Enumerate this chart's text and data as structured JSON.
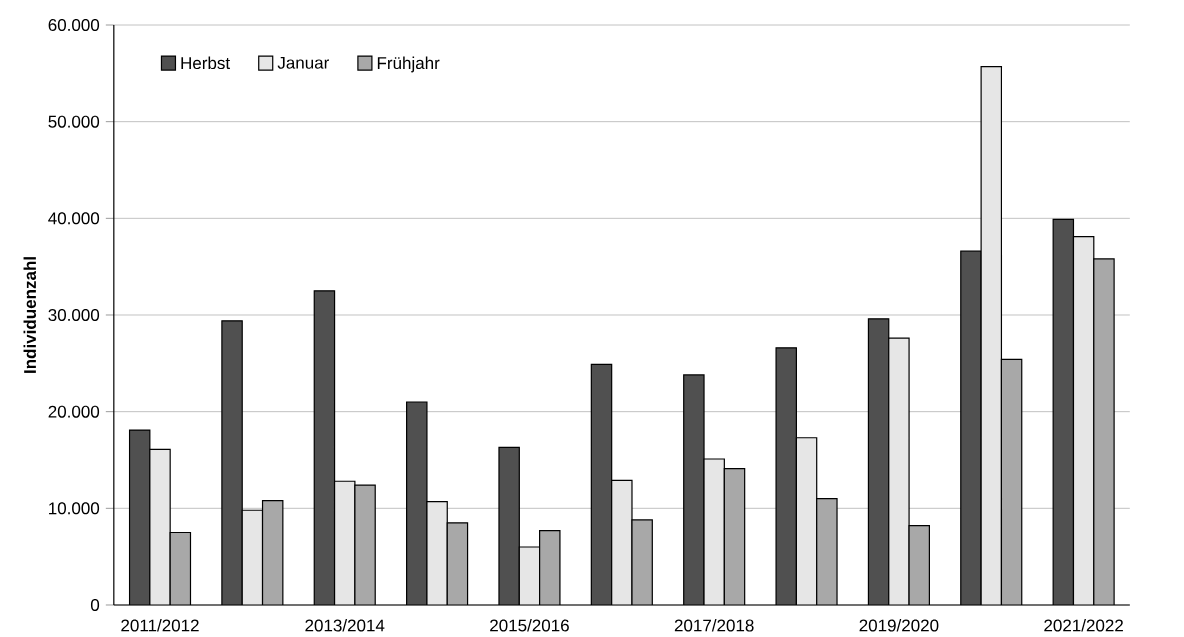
{
  "chart_data": {
    "type": "bar",
    "ylabel": "Individuenzahl",
    "categories": [
      "2011/2012",
      null,
      "2013/2014",
      null,
      "2015/2016",
      null,
      "2017/2018",
      null,
      "2019/2020",
      null,
      "2021/2022"
    ],
    "series": [
      {
        "name": "Herbst",
        "color": "#505050",
        "values": [
          18100,
          29400,
          32500,
          21000,
          16300,
          24900,
          23800,
          26600,
          29600,
          36600,
          39900
        ]
      },
      {
        "name": "Januar",
        "color": "#e6e6e6",
        "values": [
          16100,
          9800,
          12800,
          10700,
          6000,
          12900,
          15100,
          17300,
          27600,
          55700,
          38100
        ]
      },
      {
        "name": "Frühjahr",
        "color": "#a8a8a8",
        "values": [
          7500,
          10800,
          12400,
          8500,
          7700,
          8800,
          14100,
          11000,
          8200,
          25400,
          35800
        ]
      }
    ],
    "ylim": [
      0,
      60000
    ],
    "yticks": [
      0,
      {
        "value": 10000,
        "label": "10.000"
      },
      {
        "value": 20000,
        "label": "20.000"
      },
      {
        "value": 30000,
        "label": "30.000"
      },
      {
        "value": 40000,
        "label": "40.000"
      },
      {
        "value": 50000,
        "label": "50.000"
      },
      {
        "value": 60000,
        "label": "60.000"
      }
    ],
    "grid": "y",
    "legend": "top left"
  }
}
